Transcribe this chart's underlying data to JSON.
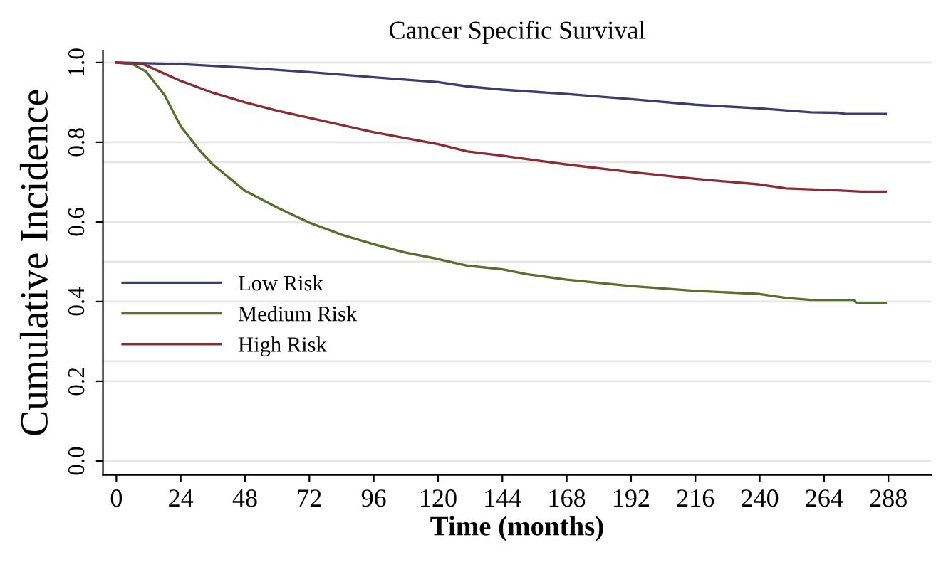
{
  "chart_data": {
    "type": "line",
    "title": "Cancer Specific Survival",
    "xlabel": "Time (months)",
    "ylabel": "Cumulative Incidence",
    "xlim": [
      -5,
      304
    ],
    "ylim": [
      -0.035,
      1.03
    ],
    "xticks": [
      0,
      24,
      48,
      72,
      96,
      120,
      144,
      168,
      192,
      216,
      240,
      264,
      288
    ],
    "yticks": [
      {
        "value": 0,
        "label": "0.0"
      },
      {
        "value": 0.2,
        "label": "0.2"
      },
      {
        "value": 0.25,
        "label": null
      },
      {
        "value": 0.4,
        "label": "0.4"
      },
      {
        "value": 0.5,
        "label": null
      },
      {
        "value": 0.6,
        "label": "0.6"
      },
      {
        "value": 0.75,
        "label": null
      },
      {
        "value": 0.8,
        "label": "0.8"
      },
      {
        "value": 1,
        "label": "1.0"
      }
    ],
    "grid": "y",
    "legend": "left",
    "marker": "none",
    "line_style": "solid",
    "series": [
      {
        "name": "Low Risk",
        "color": "#3c3c6e",
        "x": [
          0,
          24,
          48,
          72,
          96,
          120,
          131,
          144,
          168,
          192,
          216,
          240,
          259,
          269,
          272,
          287
        ],
        "values": [
          1.0,
          0.996,
          0.987,
          0.976,
          0.963,
          0.951,
          0.94,
          0.932,
          0.921,
          0.908,
          0.894,
          0.885,
          0.875,
          0.874,
          0.871,
          0.871
        ]
      },
      {
        "name": "Medium Risk",
        "color": "#5a6e2e",
        "x": [
          0,
          6,
          11,
          18,
          24,
          31,
          36,
          48,
          60,
          72,
          84,
          96,
          108,
          120,
          131,
          144,
          153,
          168,
          192,
          216,
          240,
          250,
          259,
          275,
          276,
          287
        ],
        "values": [
          1.0,
          0.996,
          0.978,
          0.918,
          0.84,
          0.78,
          0.744,
          0.678,
          0.636,
          0.598,
          0.568,
          0.544,
          0.523,
          0.507,
          0.49,
          0.481,
          0.469,
          0.455,
          0.439,
          0.427,
          0.419,
          0.409,
          0.404,
          0.404,
          0.397,
          0.397
        ]
      },
      {
        "name": "High Risk",
        "color": "#8b2c34",
        "x": [
          0,
          10,
          24,
          36,
          48,
          60,
          72,
          96,
          120,
          131,
          144,
          168,
          192,
          216,
          240,
          250,
          269,
          278,
          287
        ],
        "values": [
          1.0,
          0.996,
          0.954,
          0.924,
          0.9,
          0.879,
          0.861,
          0.825,
          0.795,
          0.777,
          0.766,
          0.744,
          0.725,
          0.708,
          0.694,
          0.684,
          0.679,
          0.676,
          0.676
        ]
      }
    ]
  }
}
